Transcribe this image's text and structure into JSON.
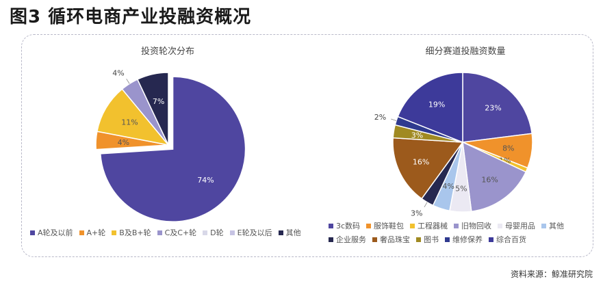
{
  "figure_title": "图3  循环电商产业投融资概况",
  "source": "资料来源：鲸准研究院",
  "chart_data": [
    {
      "type": "pie",
      "title": "投资轮次分布",
      "start_angle_deg": 90,
      "slices": [
        {
          "label": "A轮及以前",
          "value": 74,
          "display": "74%",
          "color": "#4f46a0"
        },
        {
          "label": "A+轮",
          "value": 4,
          "display": "4%",
          "color": "#f0922b"
        },
        {
          "label": "B及B+轮",
          "value": 11,
          "display": "11%",
          "color": "#f2c12e"
        },
        {
          "label": "C及C+轮",
          "value": 4,
          "display": "4%",
          "color": "#9a94cc"
        },
        {
          "label": "D轮",
          "value": 0,
          "display": "",
          "color": "#d8d8e8"
        },
        {
          "label": "E轮及以后",
          "value": 0,
          "display": "",
          "color": "#c6c3e3"
        },
        {
          "label": "其他",
          "value": 7,
          "display": "7%",
          "color": "#262850"
        }
      ],
      "legend_rows": [
        [
          "A轮及以前",
          "A+轮",
          "B及B+轮",
          "C及C+轮",
          "D轮",
          "E轮及以后",
          "其他"
        ]
      ]
    },
    {
      "type": "pie",
      "title": "细分赛道投融资数量",
      "start_angle_deg": 90,
      "slices": [
        {
          "label": "3c数码",
          "value": 23,
          "display": "23%",
          "color": "#4f46a0"
        },
        {
          "label": "服饰鞋包",
          "value": 8,
          "display": "8%",
          "color": "#f0922b"
        },
        {
          "label": "工程器械",
          "value": 1,
          "display": "1%",
          "color": "#f2c12e"
        },
        {
          "label": "旧物回收",
          "value": 16,
          "display": "16%",
          "color": "#9a94cc"
        },
        {
          "label": "母婴用品",
          "value": 5,
          "display": "5%",
          "color": "#ebe9f3"
        },
        {
          "label": "其他",
          "value": 4,
          "display": "4%",
          "color": "#a9c6ec"
        },
        {
          "label": "企业服务",
          "value": 3,
          "display": "3%",
          "color": "#262850"
        },
        {
          "label": "奢品珠宝",
          "value": 16,
          "display": "16%",
          "color": "#9c5a1c"
        },
        {
          "label": "图书",
          "value": 3,
          "display": "3%",
          "color": "#a08a22"
        },
        {
          "label": "维修保养",
          "value": 2,
          "display": "2%",
          "color": "#2f3a8f"
        },
        {
          "label": "综合百货",
          "value": 19,
          "display": "19%",
          "color": "#3d3a9a"
        }
      ],
      "legend_rows": [
        [
          "3c数码",
          "服饰鞋包",
          "工程器械",
          "旧物回收",
          "母婴用品",
          "其他"
        ],
        [
          "企业服务",
          "奢品珠宝",
          "图书",
          "维修保养",
          "综合百货"
        ]
      ]
    }
  ]
}
